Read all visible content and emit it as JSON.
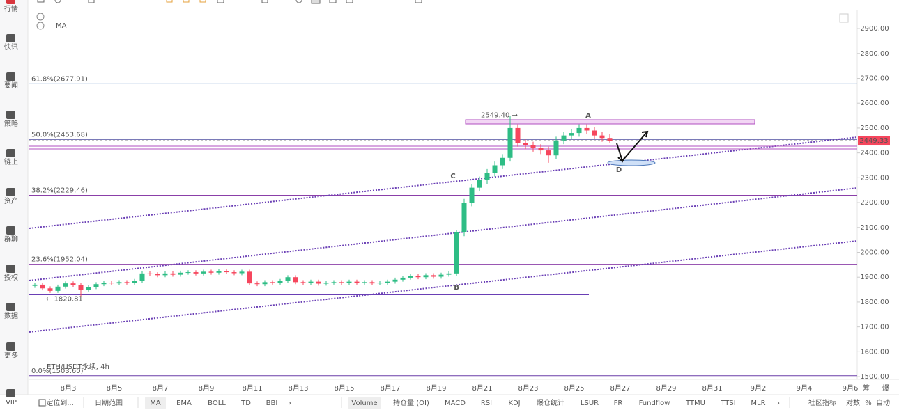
{
  "sidebar": [
    "行情",
    "快讯",
    "要闻",
    "策略",
    "链上",
    "资产",
    "群聊",
    "授权",
    "数据",
    "更多",
    "VIP"
  ],
  "indicator_tag": "MA",
  "chart_data": {
    "type": "candlestick",
    "watermark": "ETH/USDT永续, 4h",
    "categories": [
      "8月3",
      "8月5",
      "8月7",
      "8月9",
      "8月11",
      "8月13",
      "8月15",
      "8月17",
      "8月19",
      "8月21",
      "8月23",
      "8月25",
      "8月27",
      "8月29",
      "8月31",
      "9月2",
      "9月4",
      "9月6"
    ],
    "ylim": [
      1489,
      2973
    ],
    "yticks": [
      {
        "value": 2900,
        "label": "2900.00"
      },
      {
        "value": 2800,
        "label": "2800.00"
      },
      {
        "value": 2700,
        "label": "2700.00"
      },
      {
        "value": 2600,
        "label": "2600.00"
      },
      {
        "value": 2500,
        "label": "2500.00"
      },
      {
        "value": 2400,
        "label": "2400.00"
      },
      {
        "value": 2300,
        "label": "2300.00"
      },
      {
        "value": 2200,
        "label": "2200.00"
      },
      {
        "value": 2100,
        "label": "2100.00"
      },
      {
        "value": 2000,
        "label": "2000.00"
      },
      {
        "value": 1900,
        "label": "1900.00"
      },
      {
        "value": 1800,
        "label": "1800.00"
      },
      {
        "value": 1700,
        "label": "1700.00"
      },
      {
        "value": 1600,
        "label": "1600.00"
      },
      {
        "value": 1500,
        "label": "1500.00"
      }
    ],
    "up_color": "#2ebd85",
    "down_color": "#f6465d",
    "open": [
      1865,
      1870,
      1855,
      1845,
      1862,
      1875,
      1868,
      1850,
      1860,
      1872,
      1878,
      1875,
      1880,
      1878,
      1885,
      1915,
      1912,
      1908,
      1915,
      1910,
      1918,
      1920,
      1915,
      1922,
      1918,
      1925,
      1920,
      1916,
      1922,
      1875,
      1872,
      1880,
      1878,
      1885,
      1900,
      1880,
      1876,
      1882,
      1874,
      1878,
      1880,
      1876,
      1882,
      1878,
      1880,
      1875,
      1878,
      1882,
      1890,
      1898,
      1905,
      1900,
      1908,
      1902,
      1910,
      1915,
      2080,
      2200,
      2260,
      2290,
      2320,
      2350,
      2380,
      2500,
      2440,
      2430,
      2420,
      2410,
      2390,
      2450,
      2470,
      2480,
      2500,
      2490,
      2470,
      2460
    ],
    "high": [
      1878,
      1878,
      1863,
      1870,
      1883,
      1883,
      1876,
      1868,
      1880,
      1886,
      1886,
      1888,
      1888,
      1893,
      1923,
      1923,
      1920,
      1923,
      1923,
      1926,
      1928,
      1928,
      1930,
      1930,
      1933,
      1933,
      1928,
      1930,
      1930,
      1883,
      1888,
      1888,
      1893,
      1908,
      1908,
      1888,
      1890,
      1890,
      1886,
      1888,
      1888,
      1890,
      1890,
      1888,
      1888,
      1886,
      1890,
      1898,
      1906,
      1913,
      1913,
      1916,
      1916,
      1918,
      1923,
      2090,
      2215,
      2275,
      2305,
      2335,
      2365,
      2395,
      2549.4,
      2515,
      2455,
      2445,
      2435,
      2425,
      2465,
      2485,
      2495,
      2515,
      2515,
      2505,
      2485,
      2475
    ],
    "low": [
      1857,
      1847,
      1837,
      1837,
      1854,
      1860,
      1820.81,
      1842,
      1852,
      1864,
      1867,
      1867,
      1870,
      1870,
      1877,
      1904,
      1900,
      1900,
      1902,
      1902,
      1910,
      1907,
      1907,
      1910,
      1910,
      1912,
      1908,
      1908,
      1867,
      1864,
      1864,
      1870,
      1870,
      1877,
      1872,
      1868,
      1868,
      1866,
      1866,
      1870,
      1868,
      1868,
      1870,
      1870,
      1867,
      1867,
      1870,
      1874,
      1882,
      1890,
      1892,
      1892,
      1894,
      1894,
      1902,
      1905,
      2065,
      2185,
      2245,
      2275,
      2305,
      2335,
      2365,
      2425,
      2415,
      2405,
      2395,
      2360,
      2375,
      2435,
      2455,
      2465,
      2475,
      2455,
      2445,
      2441.33
    ],
    "close": [
      1870,
      1855,
      1845,
      1862,
      1875,
      1868,
      1850,
      1860,
      1872,
      1878,
      1875,
      1880,
      1878,
      1885,
      1915,
      1912,
      1908,
      1915,
      1910,
      1918,
      1920,
      1915,
      1922,
      1918,
      1925,
      1920,
      1916,
      1922,
      1875,
      1872,
      1880,
      1878,
      1885,
      1900,
      1880,
      1876,
      1882,
      1874,
      1878,
      1880,
      1876,
      1882,
      1878,
      1880,
      1875,
      1878,
      1882,
      1890,
      1898,
      1905,
      1900,
      1908,
      1902,
      1910,
      1915,
      2080,
      2200,
      2260,
      2290,
      2320,
      2350,
      2380,
      2500,
      2440,
      2430,
      2420,
      2410,
      2390,
      2450,
      2470,
      2480,
      2500,
      2490,
      2470,
      2460,
      2449.33
    ],
    "last_price": {
      "value": 2449.33,
      "label": "2449.33"
    },
    "fib_levels": [
      {
        "label": "61.8%(2677.91)",
        "value": 2677.91,
        "color": "#3f6fb5"
      },
      {
        "label": "50.0%(2453.68)",
        "value": 2453.68,
        "color": "#7a7ab8"
      },
      {
        "label": "38.2%(2229.46)",
        "value": 2229.46,
        "color": "#8b3fa8"
      },
      {
        "label": "23.6%(1952.04)",
        "value": 1952.04,
        "color": "#8b3fa8"
      },
      {
        "label": "0.0%(1503.60)",
        "value": 1503.6,
        "color": "#6a3fa8"
      }
    ],
    "price_marks": [
      {
        "label": "2549.40 →",
        "value": 2549.4
      },
      {
        "label": "← 1820.81",
        "value": 1820.81
      }
    ],
    "wave_labels": [
      "A",
      "B",
      "C",
      "D"
    ]
  },
  "axis_buttons": [
    "筹",
    "爆"
  ],
  "bottom_bar": {
    "left": [
      "定位到...",
      "日期范围"
    ],
    "indicators": [
      "MA",
      "EMA",
      "BOLL",
      "TD",
      "BBI",
      "›"
    ],
    "sub_indicators": [
      "Volume",
      "持仓量 (OI)",
      "MACD",
      "RSI",
      "KDJ",
      "爆仓统计",
      "LSUR",
      "FR",
      "Fundflow",
      "TTMU",
      "TTSI",
      "MLR",
      "›"
    ],
    "right": [
      "社区指标",
      "对数",
      "%",
      "自动"
    ]
  }
}
